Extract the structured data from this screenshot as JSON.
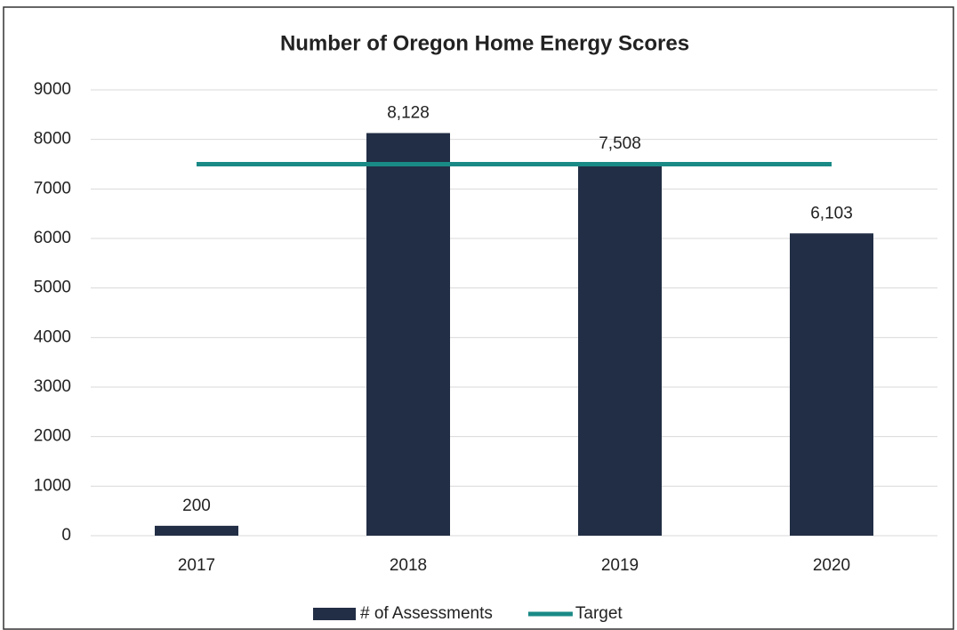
{
  "chart_data": {
    "type": "bar",
    "title": "Number of Oregon Home Energy Scores",
    "categories": [
      "2017",
      "2018",
      "2019",
      "2020"
    ],
    "series": [
      {
        "name": "# of Assessments",
        "color": "#222e45",
        "values": [
          200,
          8128,
          7508,
          6103
        ],
        "value_labels": [
          "200",
          "8,128",
          "7,508",
          "6,103"
        ]
      },
      {
        "name": "Target",
        "type": "line",
        "color": "#1a8a86",
        "values": [
          7500,
          7500,
          7500,
          7500
        ]
      }
    ],
    "ylim": [
      0,
      9000
    ],
    "yticks": [
      0,
      1000,
      2000,
      3000,
      4000,
      5000,
      6000,
      7000,
      8000,
      9000
    ],
    "grid": true,
    "legend": "bottom"
  }
}
